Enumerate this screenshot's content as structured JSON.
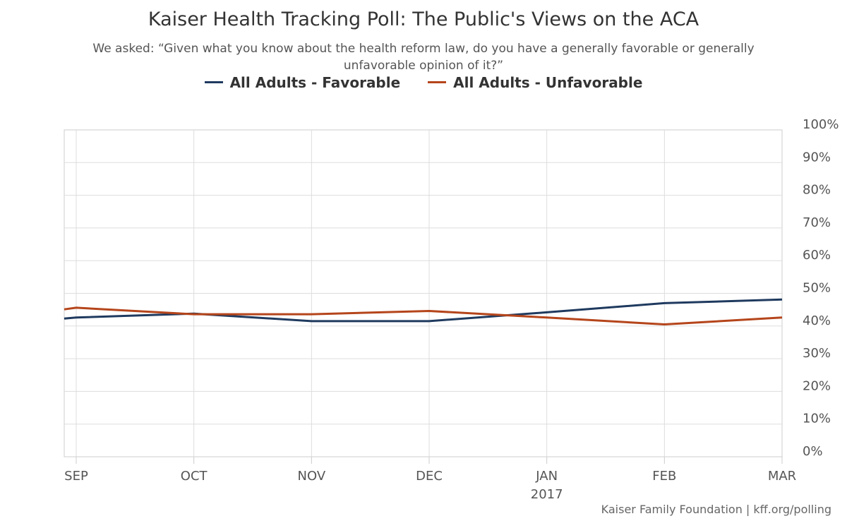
{
  "chart_data": {
    "type": "line",
    "title": "Kaiser Health Tracking Poll: The Public's Views on the ACA",
    "subtitle": "We asked: “Given what you know about the health reform law, do you have a generally favorable or generally unfavorable opinion of it?”",
    "x": [
      "SEP",
      "OCT",
      "NOV",
      "DEC",
      "JAN",
      "FEB",
      "MAR"
    ],
    "x_sublabels": [
      "",
      "",
      "",
      "",
      "2017",
      "",
      ""
    ],
    "series": [
      {
        "name": "All Adults - Favorable",
        "color": "#1f3a5f",
        "values": [
          42.6,
          43.8,
          41.5,
          41.5,
          44.2,
          47.0,
          48.1
        ]
      },
      {
        "name": "All Adults - Unfavorable",
        "color": "#b5451b",
        "values": [
          45.6,
          43.6,
          43.6,
          44.6,
          42.6,
          40.5,
          42.6
        ]
      }
    ],
    "series_start_values": [
      42.3,
      45.1
    ],
    "y_ticks": [
      "0%",
      "10%",
      "20%",
      "30%",
      "40%",
      "50%",
      "60%",
      "70%",
      "80%",
      "90%",
      "100%"
    ],
    "ylim": [
      0,
      100
    ],
    "grid": true,
    "legend_position": "top-center",
    "y_axis_side": "right"
  },
  "credit": "Kaiser Family Foundation | kff.org/polling"
}
